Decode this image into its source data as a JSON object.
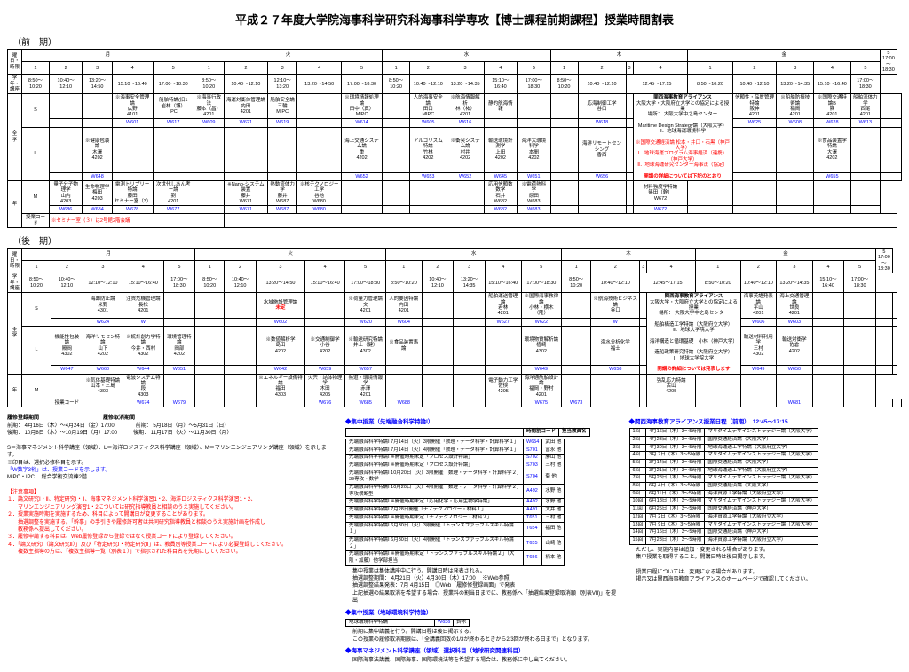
{
  "title": "平成２７年度大学院海事科学研究科海事科学専攻【博士課程前期課程】授業時間割表",
  "term1": {
    "label": "（前　期）",
    "days": [
      "月",
      "火",
      "水",
      "木",
      "金"
    ],
    "periods": [
      "1",
      "2",
      "3",
      "4",
      "5"
    ],
    "times": [
      "8:50～10:20",
      "10:40～12:10",
      "13:20～14:50",
      "15:10～16:40",
      "17:00～18:30"
    ],
    "thu_time": "12:45～17:15",
    "extraSlot": {
      "label": "5",
      "time": "17:00～18:30"
    }
  },
  "term2": {
    "label": "（後　期）"
  },
  "reg": {
    "h1": "履修登録期間",
    "l1": "前期： 4月16日（木）～4月24日（金）17:00",
    "l2": "後期： 10月8日（木）～10月19日（月）17:00",
    "h2": "履修取消期間",
    "l3": "前期： 5月18日（月）～5月31日（日）",
    "l4": "後期： 11月17日（火）～11月30日（月）"
  },
  "legend": {
    "l1": "S＝海事マネジメント科学講座（領域）、L＝海洋ロジスティクス科学講座（領域）、M＝マリンエンジニアリング講座（領域）を示します。",
    "l2": "※印目は、選択必修科目を示す。",
    "l3": "「W数字3桁」は、授業コードを示します。",
    "l4": "MIPC・IPC： 総合学術交流棟2階"
  },
  "caution": {
    "h": "【注意事項】",
    "l1": "１．論文研究Ⅰ・Ⅱ、特定研究Ⅰ・Ⅱ、海事マネジメント科学演習1・2、海洋ロジスティクス科学演習1・2、",
    "l1b": "　　マリンエンジニアリング演習1・2については研究指導教員と相談のうえ実施してください。",
    "l2": "２．授業実施時期を実施するため、科目によって開講日が変更することがあります。",
    "l3": "　　抽選調整を実施する。「幹事」の手引きや履修許可者は共同研究指導教員と相談のうえ実施計画を作成し",
    "l4": "　　教務係へ提出してください。",
    "l5": "３．履修申請する科目は、Web履修登録から登録ではなく授業コードにより登録してください。",
    "l6": "４．「論文研究Ⅰ（論文研究Ⅱ）」及び「特定研究Ⅰ・特定研究Ⅱ」は、教員別等授業コードにより必要登録してください。",
    "l7": "　　複数主指導の方は、「複数主指導一覧（別表１）」で指示された科目名を先期にしてください。"
  },
  "intCol": {
    "h": "◆集中授業（先端融合科学特論Ⅰ）",
    "cols": [
      "時間割コード",
      "担当教員名"
    ],
    "rows": [
      [
        "先端融合科学特論Ⅰ 7月14日（火）3限開催「数理・データ科学・計算科学１」",
        "W654",
        "武田 他"
      ],
      [
        "先端融合科学特論Ⅰ 7月14日（火）4限開催「数理・データ科学・計算科学１」",
        "S701",
        "富永 他"
      ],
      [
        "先端融合科学特論Ⅰ ※開催時期未定「プロセス設計特論」",
        "S702",
        "勝山 他"
      ],
      [
        "先端融合科学特論Ⅰ ※開催時期未定「プロセス設計特論」",
        "S703",
        "三村 他"
      ],
      [
        "先端融合科学特論Ⅰ 10月20日（火）3限開催「数理・データ科学・計算科学２」39専攻・数学",
        "S704",
        "菊 他"
      ],
      [
        "先端融合科学特論Ⅰ 10月20日（火）4限開催「数理・データ科学・計算科学２」専攻横断型",
        "A492",
        "水野 他"
      ],
      [
        "先端融合科学特論Ⅰ ※開催時期未定「応用化学・応用生物学特論」",
        "A492",
        "水野 他"
      ],
      [
        "先端融合科学特論Ⅰ 7月28日開催「ナノテクノロジー・材料１」",
        "A491",
        "大井 他"
      ],
      [
        "先端融合科学特論Ⅰ ※開催時期未定「ナノテクノロジー・材料２」",
        "T651",
        "三村 他"
      ],
      [
        "先端融合科学特論Ⅰ 6月30日（火）3限開催「トランスファラブルスキル特論１」",
        "T654",
        "福田 他"
      ],
      [
        "先端融合科学特論Ⅰ 6月30日（火）4限開催「トランスファラブルスキル特論２」",
        "T655",
        "山崎 他"
      ],
      [
        "先端融合科学特論Ⅰ ※開催時期未定「トランスファラブルスキル特論２」（大阪・加藤）他学部担当",
        "T656",
        "柄本 他"
      ]
    ],
    "n1": "集中授業は集体講座中に行う。開講日時は発表される。",
    "n2": "抽選調整期間： 4月21日（火）4月30日（木）17:00 　※Web参照",
    "n3": "抽選調整結果発表：7月 4月15日　◎Web「履修修登録画面」で発表",
    "n4": "上記抽選の結果取消を希望する場合、授業料の割当日までに、教務係へ「抽選結果登録取消願（別表VII)」を提出"
  },
  "geo": {
    "h": "◆集中授業（地球環境科学特論）",
    "row": [
      "地球環境科学特論",
      "W636",
      "鈴木"
    ],
    "n1": "前期に集中講義を行う。開講日程は後日掲示する。",
    "n2": "この授業の履修取消期限は、「全講義回数の1/3が終わるときから2/3回が終わる日まで」となります。"
  },
  "mgt": {
    "h": "◆海事マネジメント科学講座（領域）選択科目（地球研究関連科目）",
    "n1": "国際海事法講義、国際海事、国際環境法等を希望する場合は、教務係に申し出てください。"
  },
  "kansai": {
    "h": "◆関西海事教育アライアンス授業日程（前期）　12:45～17:15",
    "rows": [
      [
        "1回",
        "4月16日（木）3～5時限",
        "マリタイムデザインストラテジー論（大阪大学）"
      ],
      [
        "2回",
        "4月23日（木）3～5時限",
        "国際交通経済論（大阪大学）"
      ],
      [
        "3回",
        "4月30日（木）3～5時限",
        "地球海運通工学特論（大阪府立大学）"
      ],
      [
        "4回",
        "3月 7日（木）3～5時限",
        "マリタイムデザインストラテジー論（大阪大学）"
      ],
      [
        "5回",
        "3月14日（木）3～5時限",
        "国際交通経済論（大阪大学）"
      ],
      [
        "6回",
        "3月21日（木）3～5時限",
        "地球海運通工学特論（大阪府立大学）"
      ],
      [
        "7回",
        "5月28日（木）3～5時限",
        "マリタイムデザインストラテジー論（大阪大学）"
      ],
      [
        "8回",
        "6月 4日（木）3～5時限",
        "国際交通経済論（大阪大学）"
      ],
      [
        "9回",
        "6月11日（木）3～5時限",
        "海洋資源工学特論（大阪府立大学）"
      ],
      [
        "10回",
        "6月18日（木）3～5時限",
        "マリタイムデザインストラテジー論（大阪大学）"
      ],
      [
        "11回",
        "6月25日（木）3～5時限",
        "国際交通経済論（神戸大学）"
      ],
      [
        "12回",
        "7月 2日（木）3～5時限",
        "海洋資源工学特論（大阪府立大学）"
      ],
      [
        "13回",
        "7月 9日（木）3～5時限",
        "マリタイムデザインストラテジー論（大阪大学）"
      ],
      [
        "14回",
        "7月16日（木）3～5時限",
        "国際交通経済論（神戸大学）"
      ],
      [
        "15回",
        "7月23日（木）3～5時限",
        "海洋資源工学特論（大阪府立大学）"
      ]
    ],
    "n1": "ただし、実施内容は追加・変更される場合があります。",
    "n2": "集中授業を取得すること。開講日時は後日掲示します。",
    "n3": "授業日程については、変更になる場合があります。",
    "n4": "掲示又は関西海事教育アライアンスのホームページで確認してください。"
  },
  "colors": {
    "blue": "#0000ff",
    "red": "#ff0000"
  },
  "seminar_note": "※セミナー室（３）は2号館2階会議"
}
